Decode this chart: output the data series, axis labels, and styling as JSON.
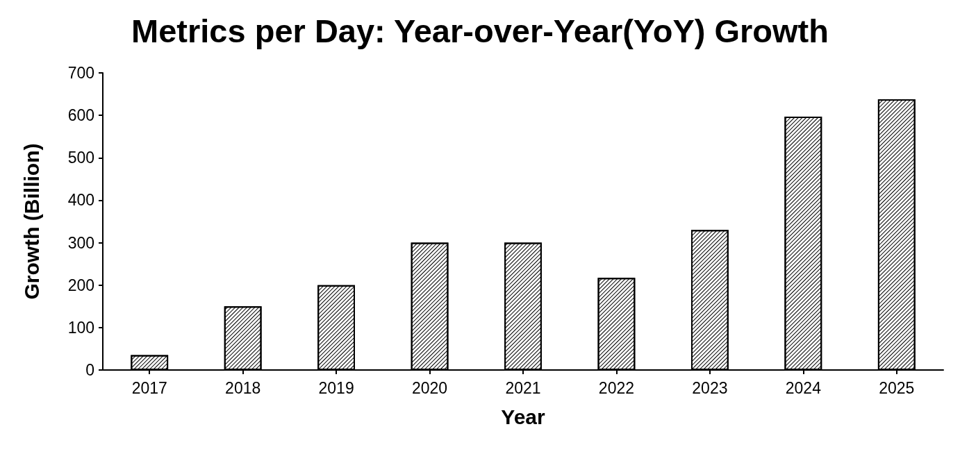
{
  "chart_data": {
    "type": "bar",
    "title": "Metrics per Day: Year-over-Year(YoY) Growth",
    "xlabel": "Year",
    "ylabel": "Growth (Billion)",
    "categories": [
      "2017",
      "2018",
      "2019",
      "2020",
      "2021",
      "2022",
      "2023",
      "2024",
      "2025"
    ],
    "values": [
      35,
      150,
      200,
      300,
      300,
      217,
      330,
      597,
      638
    ],
    "color": "#000000",
    "ylim": [
      0,
      700
    ],
    "yticks": [
      0,
      100,
      200,
      300,
      400,
      500,
      600,
      700
    ],
    "grid": false
  }
}
